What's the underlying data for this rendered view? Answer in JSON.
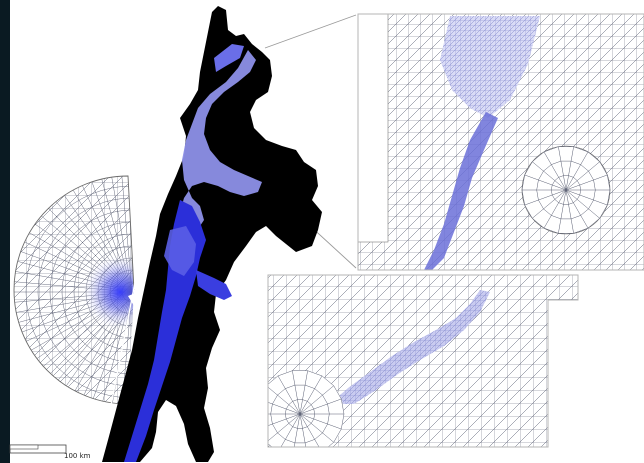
{
  "scale_bar": {
    "label": "100 km"
  },
  "colors": {
    "background": "#0a1a22",
    "paper": "#ffffff",
    "mesh_line": "#5a5f73",
    "mesh_dense": "#8a8fd6",
    "land_mass": "#000000",
    "water_deep": "#2b2fd9",
    "water_light": "#8d90e8",
    "callout_line": "#9a9a9a",
    "frame": "#b5b5b5"
  },
  "icons": {
    "inset_top": "mesh-detail-inset",
    "inset_bottom": "mesh-detail-inset",
    "main_map": "estuary-mesh-map"
  }
}
